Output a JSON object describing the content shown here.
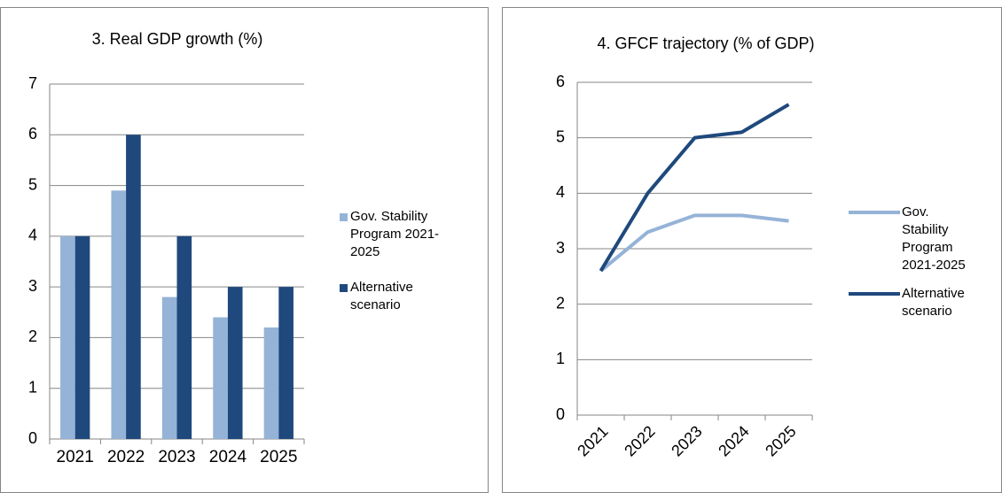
{
  "chart_data": [
    {
      "type": "bar",
      "title": "3. Real GDP growth (%)",
      "categories": [
        "2021",
        "2022",
        "2023",
        "2024",
        "2025"
      ],
      "series": [
        {
          "name": "Gov. Stability Program 2021-2025",
          "color": "#95b3d7",
          "values": [
            4,
            4.9,
            2.8,
            2.4,
            2.2
          ]
        },
        {
          "name": "Alternative scenario",
          "color": "#1f497d",
          "values": [
            4,
            6,
            4,
            3,
            3
          ]
        }
      ],
      "ylim": [
        0,
        7
      ],
      "yticks": [
        0,
        1,
        2,
        3,
        4,
        5,
        6,
        7
      ],
      "grid": true,
      "legend": "right"
    },
    {
      "type": "line",
      "title": "4. GFCF trajectory (% of GDP)",
      "categories": [
        "2021",
        "2022",
        "2023",
        "2024",
        "2025"
      ],
      "series": [
        {
          "name": "Gov. Stability Program 2021-2025",
          "color": "#95b3d7",
          "values": [
            2.6,
            3.3,
            3.6,
            3.6,
            3.5
          ]
        },
        {
          "name": "Alternative scenario",
          "color": "#1f497d",
          "values": [
            2.6,
            4.0,
            5.0,
            5.1,
            5.6
          ]
        }
      ],
      "ylim": [
        0,
        6
      ],
      "yticks": [
        0,
        1,
        2,
        3,
        4,
        5,
        6
      ],
      "grid": true,
      "legend": "right"
    }
  ]
}
